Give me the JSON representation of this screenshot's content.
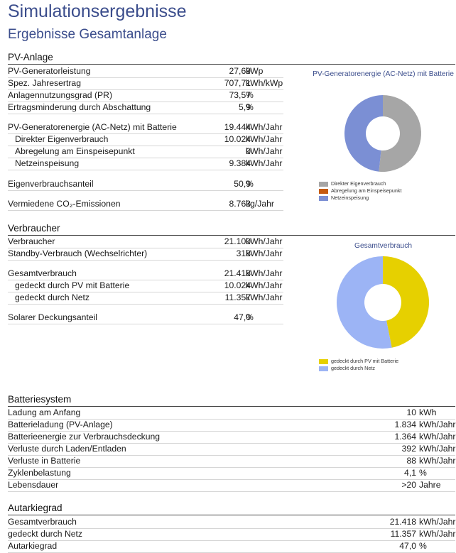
{
  "title": "Simulationsergebnisse",
  "subtitle": "Ergebnisse Gesamtanlage",
  "pv": {
    "heading": "PV-Anlage",
    "rows": [
      {
        "label": "PV-Generatorleistung",
        "value": "27,69",
        "unit": "kWp"
      },
      {
        "label": "Spez. Jahresertrag",
        "value": "707,71",
        "unit": "kWh/kWp"
      },
      {
        "label": "Anlagennutzungsgrad (PR)",
        "value": "73,57",
        "unit": "%"
      },
      {
        "label": "Ertragsminderung durch Abschattung",
        "value": "5,9",
        "unit": "%"
      },
      {
        "label": "PV-Generatorenergie (AC-Netz) mit Batterie",
        "value": "19.444",
        "unit": "kWh/Jahr"
      },
      {
        "label": "Direkter Eigenverbrauch",
        "value": "10.024",
        "unit": "kWh/Jahr"
      },
      {
        "label": "Abregelung am Einspeisepunkt",
        "value": "0",
        "unit": "kWh/Jahr"
      },
      {
        "label": "Netzeinspeisung",
        "value": "9.384",
        "unit": "kWh/Jahr"
      },
      {
        "label": "Eigenverbrauchsanteil",
        "value": "50,9",
        "unit": "%"
      },
      {
        "label": "Vermiedene CO₂-Emissionen",
        "value": "8.763",
        "unit": "kg/Jahr"
      }
    ],
    "chart": {
      "title": "PV-Generatorenergie (AC-Netz) mit Batterie",
      "legend": [
        "Direkter Eigenverbrauch",
        "Abregelung am Einspeisepunkt",
        "Netzeinspeisung"
      ]
    }
  },
  "verbraucher": {
    "heading": "Verbraucher",
    "rows": [
      {
        "label": "Verbraucher",
        "value": "21.100",
        "unit": "kWh/Jahr"
      },
      {
        "label": "Standby-Verbrauch (Wechselrichter)",
        "value": "318",
        "unit": "kWh/Jahr"
      },
      {
        "label": "Gesamtverbrauch",
        "value": "21.418",
        "unit": "kWh/Jahr"
      },
      {
        "label": "gedeckt durch PV mit Batterie",
        "value": "10.024",
        "unit": "kWh/Jahr"
      },
      {
        "label": "gedeckt durch Netz",
        "value": "11.357",
        "unit": "kWh/Jahr"
      },
      {
        "label": "Solarer Deckungsanteil",
        "value": "47,0",
        "unit": "%"
      }
    ],
    "chart": {
      "title": "Gesamtverbrauch",
      "legend": [
        "gedeckt durch PV mit Batterie",
        "gedeckt durch Netz"
      ]
    }
  },
  "batterie": {
    "heading": "Batteriesystem",
    "rows": [
      {
        "label": "Ladung am Anfang",
        "value": "10",
        "unit": "kWh"
      },
      {
        "label": "Batterieladung (PV-Anlage)",
        "value": "1.834",
        "unit": "kWh/Jahr"
      },
      {
        "label": "Batterieenergie zur Verbrauchsdeckung",
        "value": "1.364",
        "unit": "kWh/Jahr"
      },
      {
        "label": "Verluste durch Laden/Entladen",
        "value": "392",
        "unit": "kWh/Jahr"
      },
      {
        "label": "Verluste in Batterie",
        "value": "88",
        "unit": "kWh/Jahr"
      },
      {
        "label": "Zyklenbelastung",
        "value": "4,1",
        "unit": "%"
      },
      {
        "label": "Lebensdauer",
        "value": ">20",
        "unit": "Jahre"
      }
    ]
  },
  "autarkie": {
    "heading": "Autarkiegrad",
    "rows": [
      {
        "label": "Gesamtverbrauch",
        "value": "21.418",
        "unit": "kWh/Jahr"
      },
      {
        "label": "gedeckt durch Netz",
        "value": "11.357",
        "unit": "kWh/Jahr"
      },
      {
        "label": "Autarkiegrad",
        "value": "47,0",
        "unit": "%"
      }
    ]
  },
  "chart_data": [
    {
      "type": "pie",
      "title": "PV-Generatorenergie (AC-Netz) mit Batterie",
      "categories": [
        "Direkter Eigenverbrauch",
        "Abregelung am Einspeisepunkt",
        "Netzeinspeisung"
      ],
      "values": [
        10024,
        0,
        9384
      ],
      "colors": [
        "#a6a6a6",
        "#c55a11",
        "#7b8fd4"
      ]
    },
    {
      "type": "pie",
      "title": "Gesamtverbrauch",
      "categories": [
        "gedeckt durch PV mit Batterie",
        "gedeckt durch Netz"
      ],
      "values": [
        10024,
        11357
      ],
      "colors": [
        "#e6d000",
        "#9cb4f5"
      ]
    }
  ]
}
